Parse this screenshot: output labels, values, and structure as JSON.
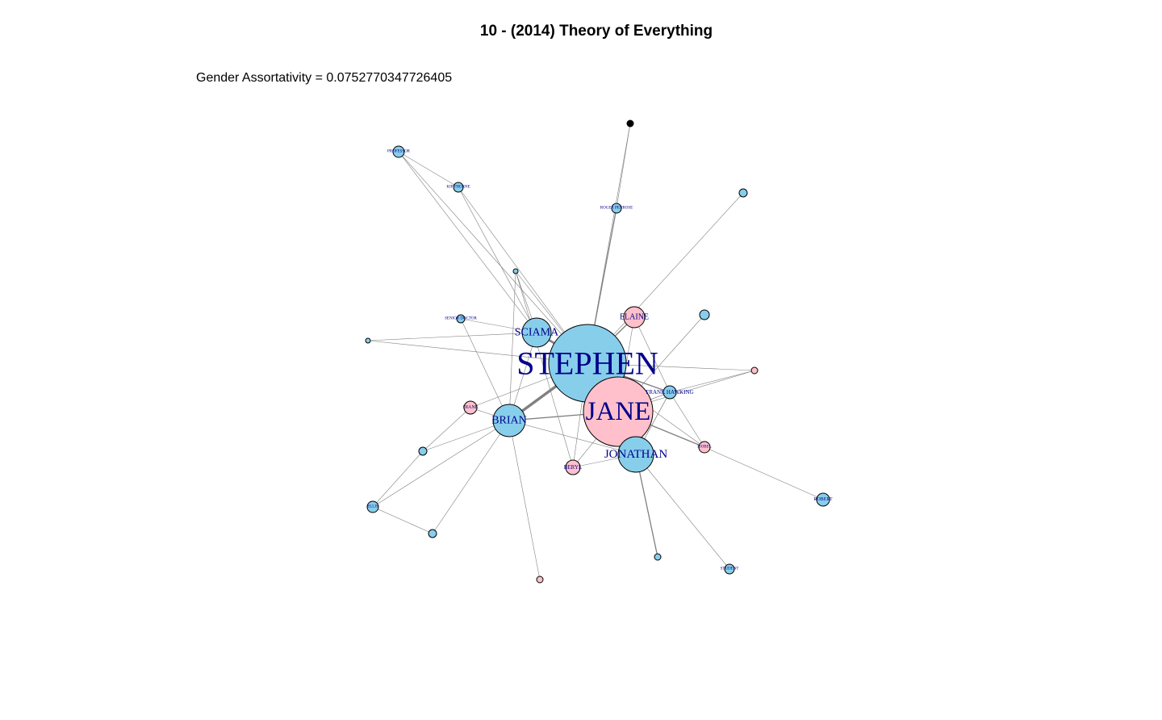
{
  "title": "10 - (2014) Theory of Everything",
  "subtitle": "Gender Assortativity = 0.0752770347726405",
  "colors": {
    "male": "#87ceeb",
    "female": "#ffc0cb",
    "unknown": "#000000",
    "edge": "#808080",
    "label": "#00008b"
  },
  "network": {
    "nodes": [
      {
        "id": "STEPHEN",
        "label": "STEPHEN",
        "gender": "male"
      },
      {
        "id": "JANE",
        "label": "JANE",
        "gender": "female"
      },
      {
        "id": "JONATHAN",
        "label": "JONATHAN",
        "gender": "male"
      },
      {
        "id": "BRIAN",
        "label": "BRIAN",
        "gender": "male"
      },
      {
        "id": "SCIAMA",
        "label": "SCIAMA",
        "gender": "male"
      },
      {
        "id": "ELAINE",
        "label": "ELAINE",
        "gender": "female"
      },
      {
        "id": "FRANK_HAWKING",
        "label": "FRANK HAWKING",
        "gender": "male"
      },
      {
        "id": "BERYL",
        "label": "BERYL",
        "gender": "female"
      },
      {
        "id": "DIANE",
        "label": "DIANE",
        "gender": "female"
      },
      {
        "id": "ISOBEL",
        "label": "ISOBEL",
        "gender": "female"
      },
      {
        "id": "ROBERT",
        "label": "ROBERT",
        "gender": "male"
      },
      {
        "id": "ROGER_PENROSE",
        "label": "ROGER PENROSE",
        "gender": "male"
      },
      {
        "id": "KIP_THORNE",
        "label": "KIP THORNE",
        "gender": "male"
      },
      {
        "id": "PROFESSOR",
        "label": "PROFESSOR",
        "gender": "male"
      },
      {
        "id": "SENIOR_DOCTOR",
        "label": "SENIOR DOCTOR",
        "gender": "male"
      },
      {
        "id": "UNKNOWN",
        "label": "",
        "gender": "unknown"
      },
      {
        "id": "ELLIS",
        "label": "ELLIS",
        "gender": "male"
      },
      {
        "id": "STUDENT",
        "label": "STUDENT",
        "gender": "male"
      },
      {
        "id": "N_TOP",
        "label": "",
        "gender": "male"
      },
      {
        "id": "N_RIGHT_UP",
        "label": "",
        "gender": "male"
      },
      {
        "id": "N_MID_RIGHT",
        "label": "",
        "gender": "male"
      },
      {
        "id": "N_SMALL_TOP",
        "label": "",
        "gender": "male"
      },
      {
        "id": "N_LEFT",
        "label": "",
        "gender": "male"
      },
      {
        "id": "N_LEFT_MID",
        "label": "",
        "gender": "male"
      },
      {
        "id": "N_LOW_LEFT",
        "label": "",
        "gender": "male"
      },
      {
        "id": "N_PINK_RIGHT",
        "label": "",
        "gender": "female"
      },
      {
        "id": "N_BOTTOM_PINK",
        "label": "",
        "gender": "female"
      },
      {
        "id": "N_BOTTOM_MID",
        "label": "",
        "gender": "male"
      }
    ],
    "edges": [
      {
        "source": "STEPHEN",
        "target": "JANE",
        "weight": 6
      },
      {
        "source": "STEPHEN",
        "target": "JONATHAN",
        "weight": 3
      },
      {
        "source": "STEPHEN",
        "target": "BRIAN",
        "weight": 5
      },
      {
        "source": "STEPHEN",
        "target": "SCIAMA",
        "weight": 4
      },
      {
        "source": "STEPHEN",
        "target": "ELAINE",
        "weight": 2
      },
      {
        "source": "STEPHEN",
        "target": "FRANK_HAWKING",
        "weight": 2
      },
      {
        "source": "STEPHEN",
        "target": "BERYL",
        "weight": 1
      },
      {
        "source": "STEPHEN",
        "target": "DIANE",
        "weight": 1
      },
      {
        "source": "STEPHEN",
        "target": "ISOBEL",
        "weight": 1
      },
      {
        "source": "STEPHEN",
        "target": "ROGER_PENROSE",
        "weight": 2
      },
      {
        "source": "STEPHEN",
        "target": "N_TOP",
        "weight": 1
      },
      {
        "source": "STEPHEN",
        "target": "N_PINK_RIGHT",
        "weight": 1
      },
      {
        "source": "STEPHEN",
        "target": "N_MID_RIGHT",
        "weight": 1
      },
      {
        "source": "STEPHEN",
        "target": "N_LEFT",
        "weight": 1
      },
      {
        "source": "STEPHEN",
        "target": "PROFESSOR",
        "weight": 1
      },
      {
        "source": "STEPHEN",
        "target": "KIP_THORNE",
        "weight": 1
      },
      {
        "source": "STEPHEN",
        "target": "N_SMALL_TOP",
        "weight": 1
      },
      {
        "source": "STEPHEN",
        "target": "UNKNOWN",
        "weight": 1
      },
      {
        "source": "JANE",
        "target": "JONATHAN",
        "weight": 3
      },
      {
        "source": "JANE",
        "target": "BRIAN",
        "weight": 2
      },
      {
        "source": "JANE",
        "target": "ISOBEL",
        "weight": 2
      },
      {
        "source": "JANE",
        "target": "FRANK_HAWKING",
        "weight": 1
      },
      {
        "source": "JANE",
        "target": "BERYL",
        "weight": 1
      },
      {
        "source": "JANE",
        "target": "N_PINK_RIGHT",
        "weight": 1
      },
      {
        "source": "JANE",
        "target": "ELAINE",
        "weight": 1
      },
      {
        "source": "JANE",
        "target": "N_RIGHT_UP",
        "weight": 1
      },
      {
        "source": "JANE",
        "target": "N_MID_RIGHT",
        "weight": 1
      },
      {
        "source": "JONATHAN",
        "target": "N_BOTTOM_MID",
        "weight": 2
      },
      {
        "source": "JONATHAN",
        "target": "STUDENT",
        "weight": 1
      },
      {
        "source": "JONATHAN",
        "target": "BERYL",
        "weight": 1
      },
      {
        "source": "JONATHAN",
        "target": "FRANK_HAWKING",
        "weight": 1
      },
      {
        "source": "JONATHAN",
        "target": "N_MID_RIGHT",
        "weight": 1
      },
      {
        "source": "JONATHAN",
        "target": "BRIAN",
        "weight": 1
      },
      {
        "source": "BRIAN",
        "target": "SCIAMA",
        "weight": 1
      },
      {
        "source": "BRIAN",
        "target": "SENIOR_DOCTOR",
        "weight": 1
      },
      {
        "source": "BRIAN",
        "target": "DIANE",
        "weight": 1
      },
      {
        "source": "BRIAN",
        "target": "ELLIS",
        "weight": 1
      },
      {
        "source": "BRIAN",
        "target": "N_LEFT_MID",
        "weight": 1
      },
      {
        "source": "BRIAN",
        "target": "N_LOW_LEFT",
        "weight": 1
      },
      {
        "source": "BRIAN",
        "target": "N_BOTTOM_PINK",
        "weight": 1
      },
      {
        "source": "BRIAN",
        "target": "N_SMALL_TOP",
        "weight": 1
      },
      {
        "source": "SCIAMA",
        "target": "PROFESSOR",
        "weight": 1
      },
      {
        "source": "SCIAMA",
        "target": "KIP_THORNE",
        "weight": 1
      },
      {
        "source": "SCIAMA",
        "target": "SENIOR_DOCTOR",
        "weight": 1
      },
      {
        "source": "SCIAMA",
        "target": "N_LEFT",
        "weight": 1
      },
      {
        "source": "SCIAMA",
        "target": "N_SMALL_TOP",
        "weight": 1
      },
      {
        "source": "ELAINE",
        "target": "N_MID_RIGHT",
        "weight": 1
      },
      {
        "source": "FRANK_HAWKING",
        "target": "N_PINK_RIGHT",
        "weight": 1
      },
      {
        "source": "FRANK_HAWKING",
        "target": "ISOBEL",
        "weight": 1
      },
      {
        "source": "FRANK_HAWKING",
        "target": "N_MID_RIGHT",
        "weight": 1
      },
      {
        "source": "ISOBEL",
        "target": "ROBERT",
        "weight": 1
      },
      {
        "source": "PROFESSOR",
        "target": "KIP_THORNE",
        "weight": 1
      },
      {
        "source": "ELLIS",
        "target": "N_LOW_LEFT",
        "weight": 1
      },
      {
        "source": "ELLIS",
        "target": "N_LEFT_MID",
        "weight": 1
      },
      {
        "source": "DIANE",
        "target": "N_LEFT_MID",
        "weight": 1
      },
      {
        "source": "BERYL",
        "target": "N_SMALL_TOP",
        "weight": 1
      },
      {
        "source": "ROGER_PENROSE",
        "target": "UNKNOWN",
        "weight": 1
      }
    ]
  }
}
